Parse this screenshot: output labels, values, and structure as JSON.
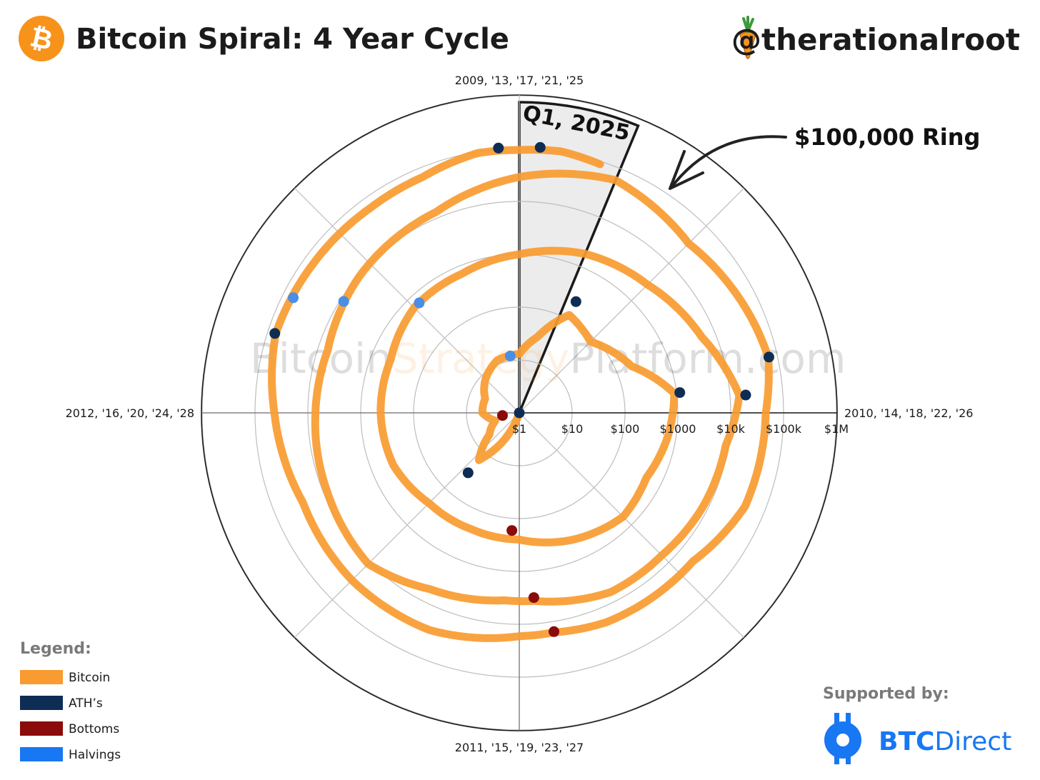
{
  "header": {
    "title": "Bitcoin Spiral: 4 Year Cycle",
    "handle": "@therationalroot",
    "logo_icon": "bitcoin-logo-icon",
    "handle_icon": "carrot-icon"
  },
  "annotations": {
    "quarter_label": "Q1, 2025",
    "ring_label": "$100,000 Ring"
  },
  "watermark": {
    "part1": "Bitcoin",
    "part2": "Strategy",
    "part3": "Platform.com"
  },
  "chart_data": {
    "type": "scatter",
    "subtype": "polar-spiral",
    "title": "Bitcoin Spiral: 4 Year Cycle",
    "angular_axis": {
      "period_years": 4,
      "direction": "clockwise",
      "labels": {
        "top": "2009, '13, '17, '21, '25",
        "right": "2010, '14, '18, '22, '26",
        "bottom": "2011, '15, '19, '23, '27",
        "left": "2012, '16, '20, '24, '28"
      }
    },
    "radial_axis": {
      "scale": "log",
      "ticks": [
        1,
        10,
        100,
        1000,
        10000,
        100000,
        1000000
      ],
      "tick_labels": [
        "$1",
        "$10",
        "$100",
        "$1000",
        "$10k",
        "$100k",
        "$1M"
      ]
    },
    "highlight_sector": {
      "label": "Q1, 2025",
      "start_year": 2025.0,
      "end_year": 2025.25
    },
    "series": [
      {
        "name": "Bitcoin",
        "color": "#f99b30",
        "points": [
          [
            2010.55,
            0.06
          ],
          [
            2010.8,
            0.2
          ],
          [
            2011.0,
            0.3
          ],
          [
            2011.2,
            1
          ],
          [
            2011.45,
            15
          ],
          [
            2011.6,
            5
          ],
          [
            2011.8,
            3
          ],
          [
            2012.0,
            5
          ],
          [
            2012.25,
            5
          ],
          [
            2012.5,
            8
          ],
          [
            2012.75,
            12
          ],
          [
            2013.0,
            13
          ],
          [
            2013.15,
            30
          ],
          [
            2013.3,
            120
          ],
          [
            2013.5,
            80
          ],
          [
            2013.75,
            200
          ],
          [
            2013.92,
            900
          ],
          [
            2014.1,
            700
          ],
          [
            2014.3,
            500
          ],
          [
            2014.5,
            600
          ],
          [
            2014.75,
            400
          ],
          [
            2015.0,
            250
          ],
          [
            2015.25,
            240
          ],
          [
            2015.5,
            260
          ],
          [
            2015.75,
            380
          ],
          [
            2016.0,
            420
          ],
          [
            2016.25,
            430
          ],
          [
            2016.5,
            650
          ],
          [
            2016.75,
            700
          ],
          [
            2017.0,
            1000
          ],
          [
            2017.25,
            1800
          ],
          [
            2017.5,
            2700
          ],
          [
            2017.75,
            5500
          ],
          [
            2017.95,
            15000
          ],
          [
            2018.1,
            9000
          ],
          [
            2018.3,
            8000
          ],
          [
            2018.5,
            6500
          ],
          [
            2018.7,
            6400
          ],
          [
            2018.95,
            3700
          ],
          [
            2019.05,
            3600
          ],
          [
            2019.3,
            5500
          ],
          [
            2019.5,
            11000
          ],
          [
            2019.75,
            8500
          ],
          [
            2020.0,
            7200
          ],
          [
            2020.2,
            6500
          ],
          [
            2020.45,
            9500
          ],
          [
            2020.75,
            13000
          ],
          [
            2021.0,
            29000
          ],
          [
            2021.25,
            58000
          ],
          [
            2021.5,
            34000
          ],
          [
            2021.75,
            55000
          ],
          [
            2021.86,
            67000
          ],
          [
            2022.0,
            46000
          ],
          [
            2022.25,
            42000
          ],
          [
            2022.45,
            21000
          ],
          [
            2022.75,
            19500
          ],
          [
            2022.9,
            16000
          ],
          [
            2023.0,
            16800
          ],
          [
            2023.25,
            28000
          ],
          [
            2023.5,
            30000
          ],
          [
            2023.75,
            27000
          ],
          [
            2024.0,
            43000
          ],
          [
            2024.2,
            70000
          ],
          [
            2024.4,
            65000
          ],
          [
            2024.6,
            62000
          ],
          [
            2024.75,
            66000
          ],
          [
            2024.9,
            95000
          ],
          [
            2025.0,
            94000
          ],
          [
            2025.1,
            102000
          ],
          [
            2025.2,
            88000
          ]
        ]
      },
      {
        "name": "ATH's",
        "color": "#0e2d55",
        "points": [
          [
            2010.6,
            0.08
          ],
          [
            2011.45,
            31
          ],
          [
            2013.3,
            230
          ],
          [
            2013.92,
            1150
          ],
          [
            2017.95,
            19800
          ],
          [
            2021.86,
            69000
          ],
          [
            2024.2,
            73000
          ],
          [
            2024.95,
            106000
          ],
          [
            2025.05,
            109000
          ]
        ]
      },
      {
        "name": "Bottoms",
        "color": "#8b0a0a",
        "points": [
          [
            2011.9,
            2.1
          ],
          [
            2015.04,
            170
          ],
          [
            2018.95,
            3200
          ],
          [
            2022.9,
            15500
          ]
        ]
      },
      {
        "name": "Halvings",
        "color": "#4a8ee6",
        "points": [
          [
            2012.9,
            12.3
          ],
          [
            2016.53,
            650
          ],
          [
            2020.36,
            8600
          ],
          [
            2024.3,
            63000
          ]
        ]
      }
    ],
    "legend": {
      "title": "Legend:",
      "placement": "bottom-left",
      "entries": [
        {
          "label": "Bitcoin",
          "color": "#f99b30"
        },
        {
          "label": "ATH’s",
          "color": "#0e2d55"
        },
        {
          "label": "Bottoms",
          "color": "#8b0a0a"
        },
        {
          "label": "Halvings",
          "color": "#1877f2"
        }
      ]
    },
    "grid": true
  },
  "sponsor": {
    "label": "Supported by:",
    "brand_bold": "BTC",
    "brand_light": "Direct",
    "brand_icon": "btc-direct-logo-icon"
  }
}
